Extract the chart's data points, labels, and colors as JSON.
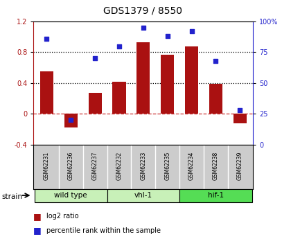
{
  "title": "GDS1379 / 8550",
  "samples": [
    "GSM62231",
    "GSM62236",
    "GSM62237",
    "GSM62232",
    "GSM62233",
    "GSM62235",
    "GSM62234",
    "GSM62238",
    "GSM62239"
  ],
  "log2_ratio": [
    0.55,
    -0.18,
    0.27,
    0.42,
    0.93,
    0.77,
    0.88,
    0.39,
    -0.12
  ],
  "percentile_rank": [
    86,
    20,
    70,
    80,
    95,
    88,
    92,
    68,
    28
  ],
  "groups": [
    {
      "label": "wild type",
      "start": 0,
      "end": 2,
      "color": "#c8f0b8"
    },
    {
      "label": "vhl-1",
      "start": 3,
      "end": 5,
      "color": "#c8f0b8"
    },
    {
      "label": "hif-1",
      "start": 6,
      "end": 8,
      "color": "#55dd55"
    }
  ],
  "bar_color": "#aa1111",
  "dot_color": "#2222cc",
  "zero_line_color": "#cc3333",
  "sample_bg_color": "#cccccc",
  "ylim_left": [
    -0.4,
    1.2
  ],
  "ylim_right": [
    0,
    100
  ],
  "yticks_left": [
    -0.4,
    0.0,
    0.4,
    0.8,
    1.2
  ],
  "yticks_right": [
    0,
    25,
    50,
    75,
    100
  ],
  "hlines": [
    0.4,
    0.8
  ],
  "background_color": "#ffffff",
  "legend_bar_label": "log2 ratio",
  "legend_dot_label": "percentile rank within the sample",
  "strain_label": "strain"
}
